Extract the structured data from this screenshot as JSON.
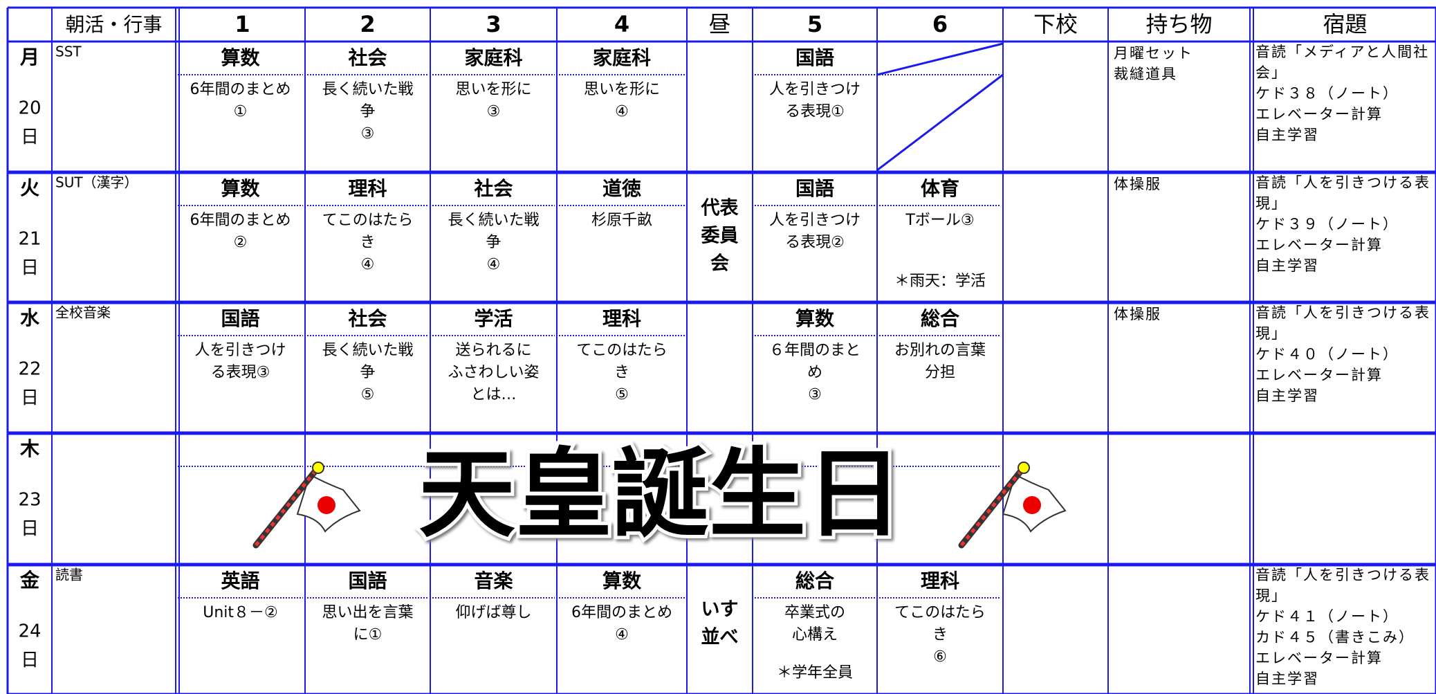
{
  "header": [
    "朝活・行事",
    "1",
    "2",
    "3",
    "4",
    "昼",
    "5",
    "6",
    "下校",
    "持ち物",
    "宿題"
  ],
  "red": "#ee1111",
  "rows": [
    {
      "day": "月",
      "date": [
        "20",
        "日"
      ],
      "morning": "SST",
      "periods": [
        {
          "subject": "算数",
          "color": "red",
          "content": [
            "6年間のまとめ",
            "①"
          ]
        },
        {
          "subject": "社会",
          "color": "red",
          "content": [
            "長く続いた戦",
            "争",
            "③"
          ]
        },
        {
          "subject": "家庭科",
          "color": "black",
          "content": [
            "思いを形に",
            "③"
          ]
        },
        {
          "subject": "家庭科",
          "color": "black",
          "content": [
            "思いを形に",
            "④"
          ]
        },
        {
          "subject": "国語",
          "color": "red",
          "content": [
            "人を引きつけ",
            "る表現①"
          ]
        }
      ],
      "belongings": [
        "月曜セット",
        "裁縫道具"
      ],
      "homework": [
        "音読「メディアと人間社",
        "会」",
        "ケド３８（ノート）",
        "エレベーター計算",
        "自主学習"
      ]
    },
    {
      "day": "火",
      "date": [
        "21",
        "日"
      ],
      "morning": "SUT（漢字）",
      "periods": [
        {
          "subject": "算数",
          "color": "red",
          "content": [
            "6年間のまとめ",
            "②"
          ]
        },
        {
          "subject": "理科",
          "color": "black",
          "content": [
            "てこのはたら",
            "き",
            "④"
          ]
        },
        {
          "subject": "社会",
          "color": "red",
          "content": [
            "長く続いた戦",
            "争",
            "④"
          ]
        },
        {
          "subject": "道徳",
          "color": "black",
          "content": [
            "杉原千畝"
          ]
        },
        {
          "subject": "国語",
          "color": "red",
          "content": [
            "人を引きつけ",
            "る表現②"
          ]
        },
        {
          "subject": "体育",
          "color": "black",
          "content": [
            "Tボール③"
          ],
          "note": "＊雨天：学活"
        }
      ],
      "lunch": [
        "代表",
        "委員",
        "会"
      ],
      "belongings": [
        "体操服"
      ],
      "homework": [
        "音読「人を引きつける表",
        "現」",
        "ケド３９（ノート）",
        "エレベーター計算",
        "自主学習"
      ]
    },
    {
      "day": "水",
      "date": [
        "22",
        "日"
      ],
      "morning": "全校音楽",
      "periods": [
        {
          "subject": "国語",
          "color": "red",
          "content": [
            "人を引きつけ",
            "る表現③"
          ]
        },
        {
          "subject": "社会",
          "color": "red",
          "content": [
            "長く続いた戦",
            "争",
            "⑤"
          ]
        },
        {
          "subject": "学活",
          "color": "black",
          "content": [
            "送られるに",
            "ふさわしい姿",
            "とは…"
          ]
        },
        {
          "subject": "理科",
          "color": "black",
          "content": [
            "てこのはたら",
            "き",
            "⑤"
          ]
        },
        {
          "subject": "算数",
          "color": "red",
          "content": [
            "６年間のまと",
            "め",
            "③"
          ]
        },
        {
          "subject": "総合",
          "color": "black",
          "content": [
            "お別れの言葉",
            "分担"
          ]
        }
      ],
      "belongings": [
        "体操服"
      ],
      "homework": [
        "音読「人を引きつける表",
        "現」",
        "ケド４０（ノート）",
        "エレベーター計算",
        "自主学習"
      ]
    },
    {
      "day": "木",
      "date": [
        "23",
        "日"
      ],
      "holiday": "天皇誕生日"
    },
    {
      "day": "金",
      "date": [
        "24",
        "日"
      ],
      "morning": "読書",
      "periods": [
        {
          "subject": "英語",
          "color": "red",
          "content": [
            "Unit８－②"
          ]
        },
        {
          "subject": "国語",
          "color": "red",
          "content": [
            "思い出を言葉",
            "に①"
          ]
        },
        {
          "subject": "音楽",
          "color": "black",
          "content": [
            "仰げば尊し"
          ]
        },
        {
          "subject": "算数",
          "color": "red",
          "content": [
            "6年間のまとめ",
            "④"
          ]
        },
        {
          "subject": "総合",
          "color": "black",
          "content": [
            "卒業式の",
            "心構え"
          ],
          "note": "＊学年全員"
        },
        {
          "subject": "理科",
          "color": "black",
          "content": [
            "てこのはたら",
            "き",
            "⑥"
          ]
        }
      ],
      "lunch": [
        "いす",
        "並べ"
      ],
      "homework": [
        "音読「人を引きつける表",
        "現」",
        "ケド４１（ノート）",
        "カド４５（書きこみ）",
        "エレベーター計算",
        "自主学習"
      ]
    }
  ]
}
